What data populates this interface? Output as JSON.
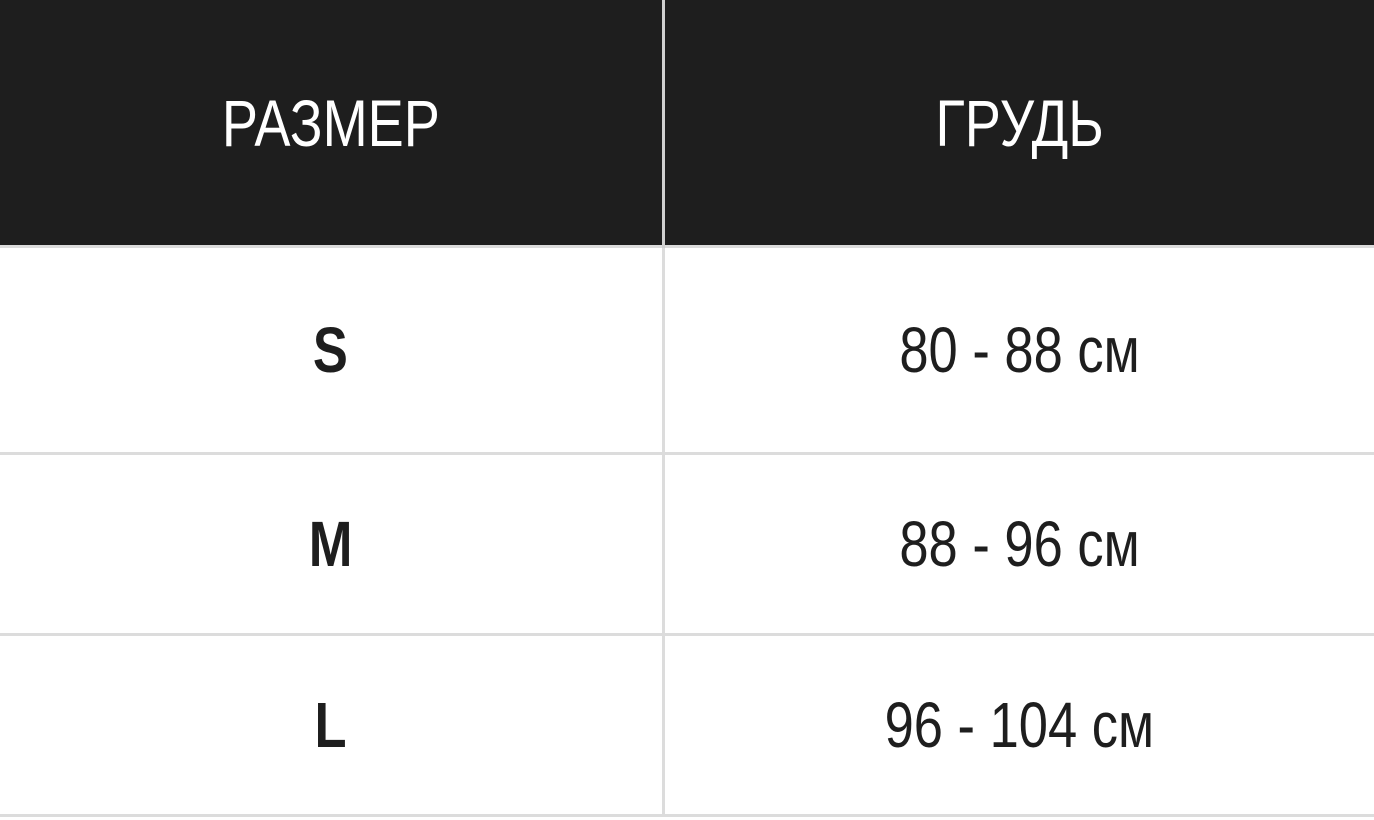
{
  "table": {
    "headers": [
      "РАЗМЕР",
      "ГРУДЬ"
    ],
    "rows": [
      {
        "size": "S",
        "chest": "80 - 88 см"
      },
      {
        "size": "M",
        "chest": "88 - 96 см"
      },
      {
        "size": "L",
        "chest": "96 - 104 см"
      }
    ]
  },
  "colors": {
    "header_bg": "#1e1e1e",
    "header_text": "#ffffff",
    "border": "#dcdcdc"
  }
}
